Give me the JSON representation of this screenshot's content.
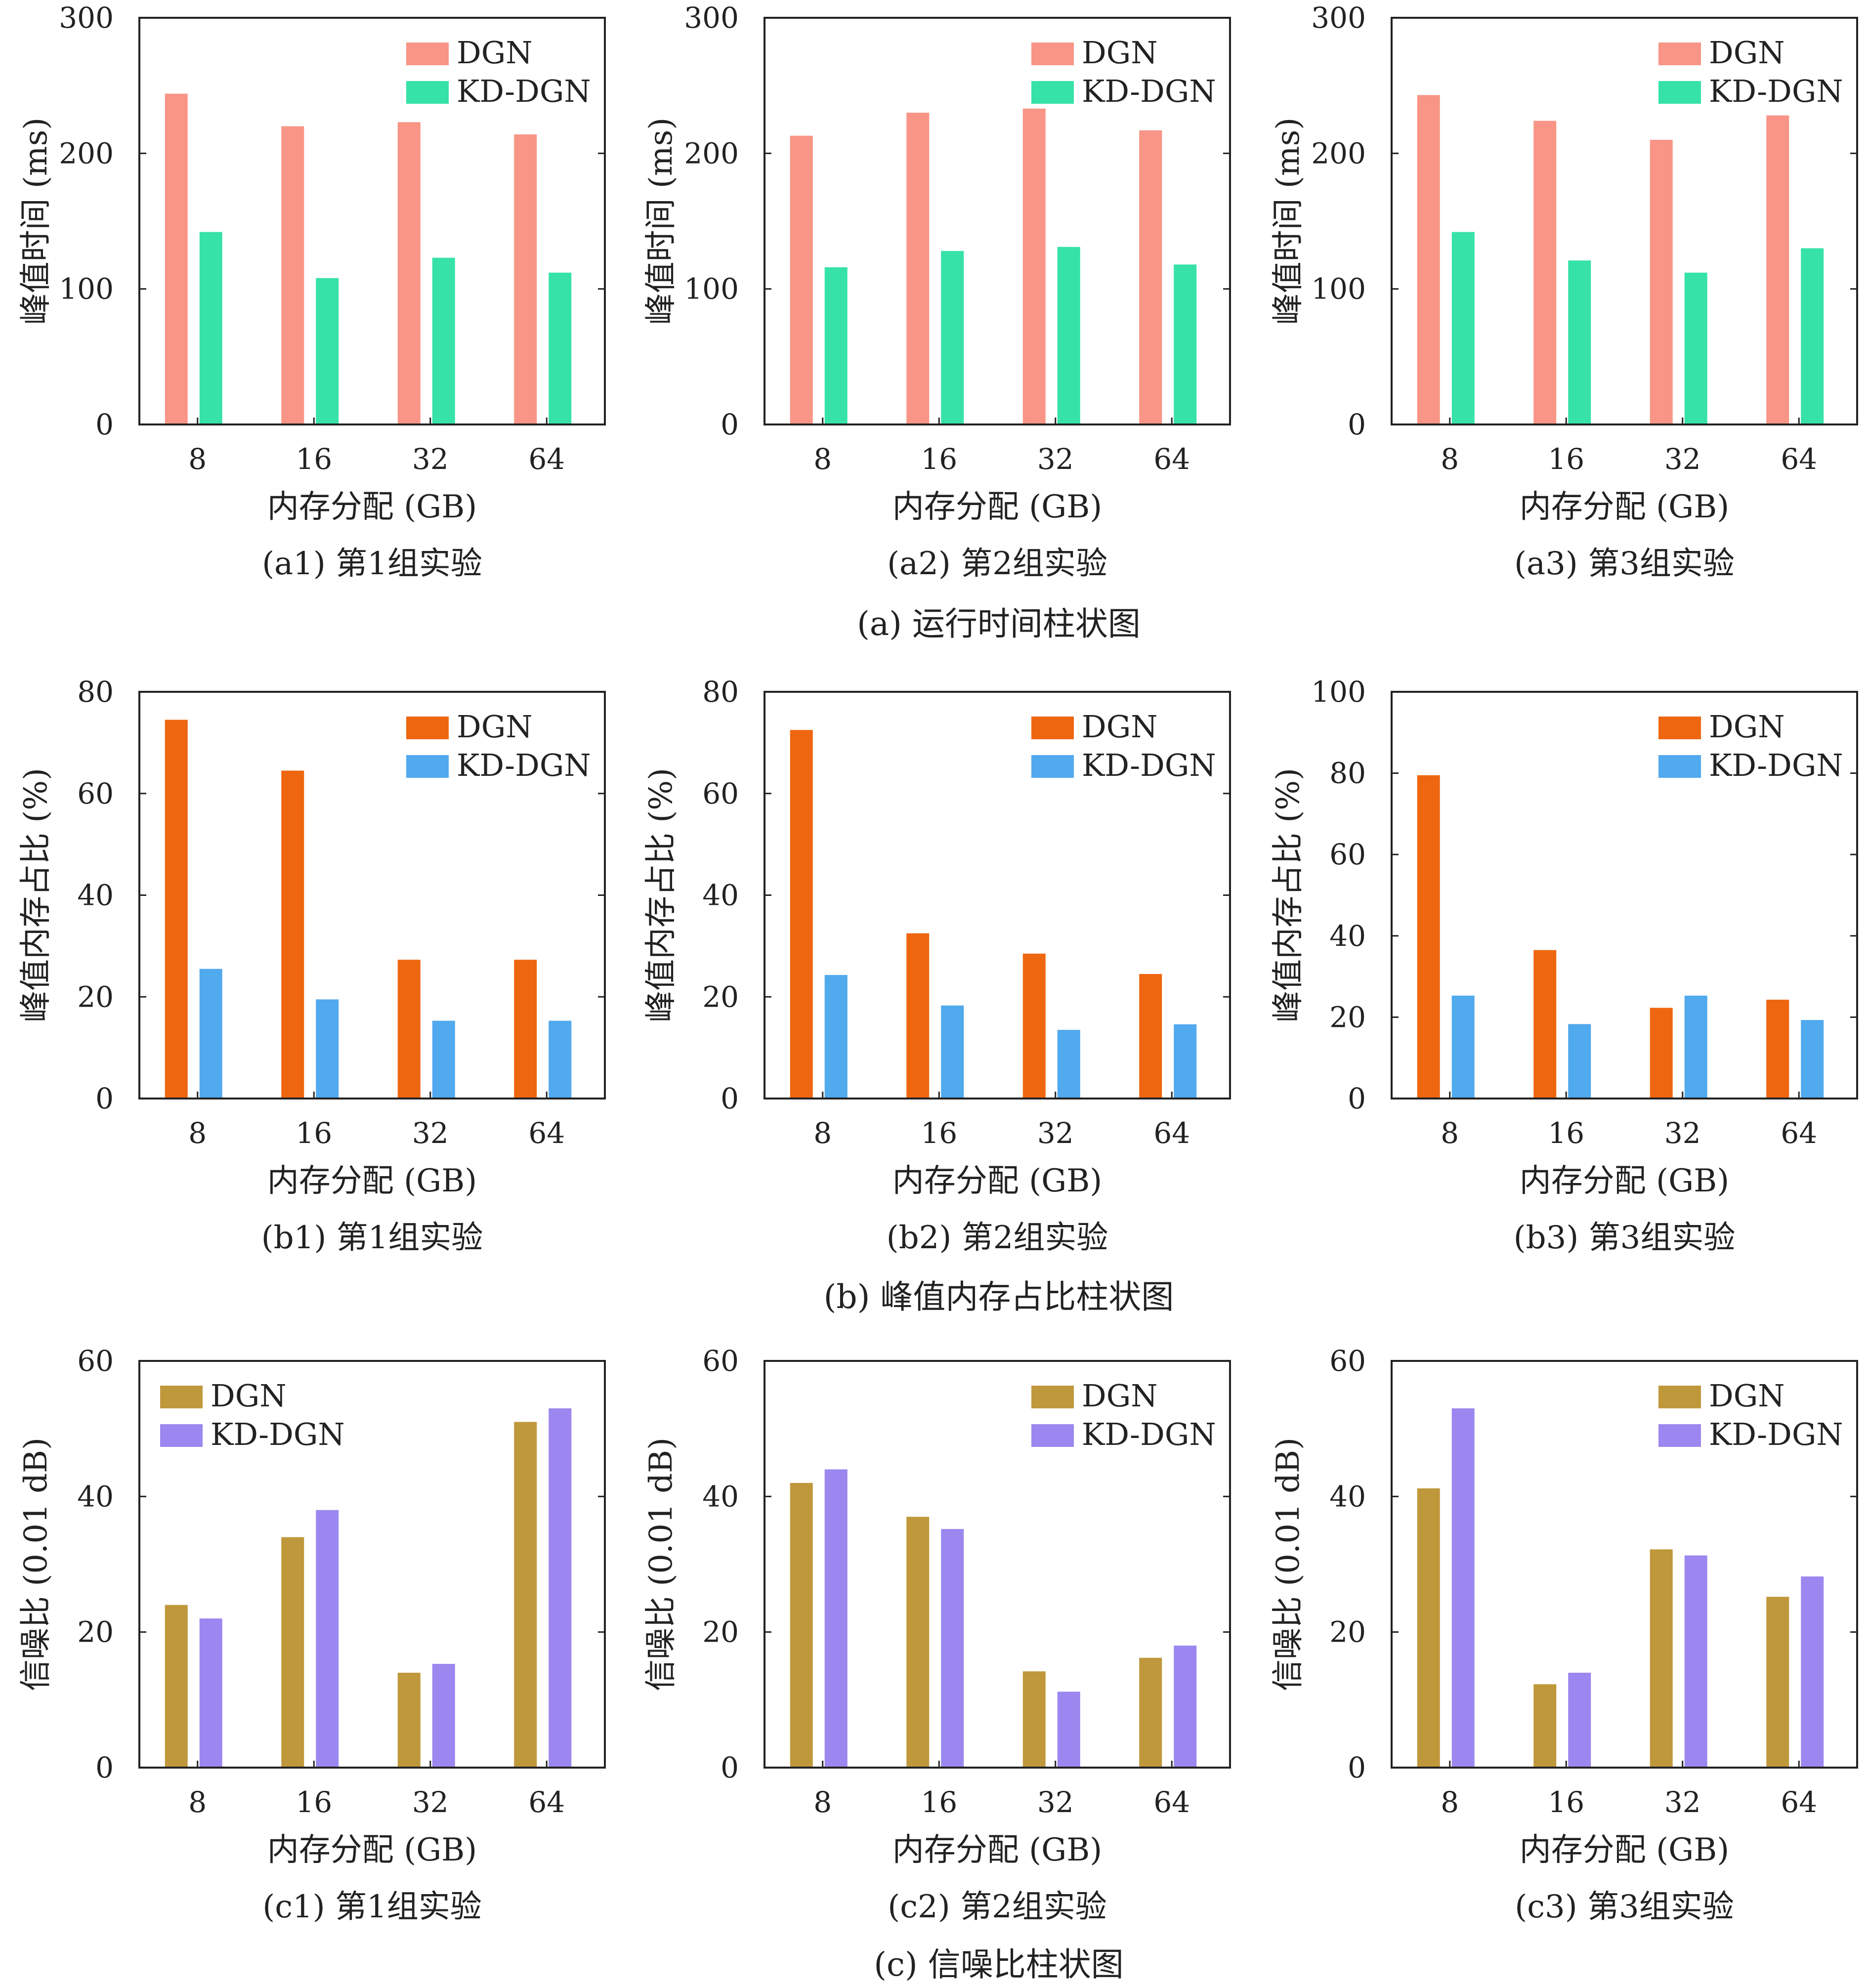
{
  "legend_labels": [
    "DGN",
    "KD-DGN"
  ],
  "rows": [
    {
      "caption": "(a) 运行时间柱状图",
      "colors": [
        "#f89586",
        "#37e2a8"
      ],
      "legend_position": "top-right"
    },
    {
      "caption": "(b) 峰值内存占比柱状图",
      "colors": [
        "#ee6710",
        "#51a9ee"
      ],
      "legend_position": "top-right"
    },
    {
      "caption": "(c) 信噪比柱状图",
      "colors": [
        "#c0983c",
        "#9b87ef"
      ],
      "legend_position": "top-right"
    }
  ],
  "chart_data": [
    {
      "type": "bar",
      "row": 0,
      "col": 0,
      "title": "(a1) 第1组实验",
      "xlabel": "内存分配 (GB)",
      "ylabel": "峰值时间 (ms)",
      "categories": [
        "8",
        "16",
        "32",
        "64"
      ],
      "ylim": [
        0,
        300
      ],
      "yticks": [
        0,
        100,
        200,
        300
      ],
      "grid": false,
      "series": [
        {
          "name": "DGN",
          "values": [
            244,
            220,
            223,
            214
          ]
        },
        {
          "name": "KD-DGN",
          "values": [
            142,
            108,
            123,
            112
          ]
        }
      ]
    },
    {
      "type": "bar",
      "row": 0,
      "col": 1,
      "title": "(a2) 第2组实验",
      "xlabel": "内存分配 (GB)",
      "ylabel": "峰值时间 (ms)",
      "categories": [
        "8",
        "16",
        "32",
        "64"
      ],
      "ylim": [
        0,
        300
      ],
      "yticks": [
        0,
        100,
        200,
        300
      ],
      "grid": false,
      "series": [
        {
          "name": "DGN",
          "values": [
            213,
            230,
            233,
            217
          ]
        },
        {
          "name": "KD-DGN",
          "values": [
            116,
            128,
            131,
            118
          ]
        }
      ]
    },
    {
      "type": "bar",
      "row": 0,
      "col": 2,
      "title": "(a3) 第3组实验",
      "xlabel": "内存分配 (GB)",
      "ylabel": "峰值时间 (ms)",
      "categories": [
        "8",
        "16",
        "32",
        "64"
      ],
      "ylim": [
        0,
        300
      ],
      "yticks": [
        0,
        100,
        200,
        300
      ],
      "grid": false,
      "series": [
        {
          "name": "DGN",
          "values": [
            243,
            224,
            210,
            228
          ]
        },
        {
          "name": "KD-DGN",
          "values": [
            142,
            121,
            112,
            130
          ]
        }
      ]
    },
    {
      "type": "bar",
      "row": 1,
      "col": 0,
      "title": "(b1) 第1组实验",
      "xlabel": "内存分配 (GB)",
      "ylabel": "峰值内存占比 (%)",
      "categories": [
        "8",
        "16",
        "32",
        "64"
      ],
      "ylim": [
        0,
        80
      ],
      "yticks": [
        0,
        20,
        40,
        60,
        80
      ],
      "grid": false,
      "series": [
        {
          "name": "DGN",
          "values": [
            74.5,
            64.5,
            27.3,
            27.3
          ]
        },
        {
          "name": "KD-DGN",
          "values": [
            25.5,
            19.5,
            15.3,
            15.3
          ]
        }
      ]
    },
    {
      "type": "bar",
      "row": 1,
      "col": 1,
      "title": "(b2) 第2组实验",
      "xlabel": "内存分配 (GB)",
      "ylabel": "峰值内存占比 (%)",
      "categories": [
        "8",
        "16",
        "32",
        "64"
      ],
      "ylim": [
        0,
        80
      ],
      "yticks": [
        0,
        20,
        40,
        60,
        80
      ],
      "grid": false,
      "series": [
        {
          "name": "DGN",
          "values": [
            72.5,
            32.5,
            28.5,
            24.5
          ]
        },
        {
          "name": "KD-DGN",
          "values": [
            24.3,
            18.3,
            13.5,
            14.6
          ]
        }
      ]
    },
    {
      "type": "bar",
      "row": 1,
      "col": 2,
      "title": "(b3) 第3组实验",
      "xlabel": "内存分配 (GB)",
      "ylabel": "峰值内存占比 (%)",
      "categories": [
        "8",
        "16",
        "32",
        "64"
      ],
      "ylim": [
        0,
        100
      ],
      "yticks": [
        0,
        20,
        40,
        60,
        80,
        100
      ],
      "grid": false,
      "series": [
        {
          "name": "DGN",
          "values": [
            79.5,
            36.5,
            22.3,
            24.3
          ]
        },
        {
          "name": "KD-DGN",
          "values": [
            25.3,
            18.3,
            25.3,
            19.3
          ]
        }
      ]
    },
    {
      "type": "bar",
      "row": 2,
      "col": 0,
      "title": "(c1) 第1组实验",
      "xlabel": "内存分配 (GB)",
      "ylabel": "信噪比 (0.01 dB)",
      "categories": [
        "8",
        "16",
        "32",
        "64"
      ],
      "ylim": [
        0,
        60
      ],
      "yticks": [
        0,
        20,
        40,
        60
      ],
      "grid": false,
      "legend_position": "top-left",
      "series": [
        {
          "name": "DGN",
          "values": [
            24,
            34,
            14,
            51
          ]
        },
        {
          "name": "KD-DGN",
          "values": [
            22,
            38,
            15.3,
            53
          ]
        }
      ]
    },
    {
      "type": "bar",
      "row": 2,
      "col": 1,
      "title": "(c2) 第2组实验",
      "xlabel": "内存分配 (GB)",
      "ylabel": "信噪比 (0.01 dB)",
      "categories": [
        "8",
        "16",
        "32",
        "64"
      ],
      "ylim": [
        0,
        60
      ],
      "yticks": [
        0,
        20,
        40,
        60
      ],
      "grid": false,
      "series": [
        {
          "name": "DGN",
          "values": [
            42,
            37,
            14.2,
            16.2
          ]
        },
        {
          "name": "KD-DGN",
          "values": [
            44,
            35.2,
            11.2,
            18
          ]
        }
      ]
    },
    {
      "type": "bar",
      "row": 2,
      "col": 2,
      "title": "(c3) 第3组实验",
      "xlabel": "内存分配 (GB)",
      "ylabel": "信噪比 (0.01 dB)",
      "categories": [
        "8",
        "16",
        "32",
        "64"
      ],
      "ylim": [
        0,
        60
      ],
      "yticks": [
        0,
        20,
        40,
        60
      ],
      "grid": false,
      "series": [
        {
          "name": "DGN",
          "values": [
            41.2,
            12.3,
            32.2,
            25.2
          ]
        },
        {
          "name": "KD-DGN",
          "values": [
            53,
            14,
            31.3,
            28.2
          ]
        }
      ]
    }
  ]
}
